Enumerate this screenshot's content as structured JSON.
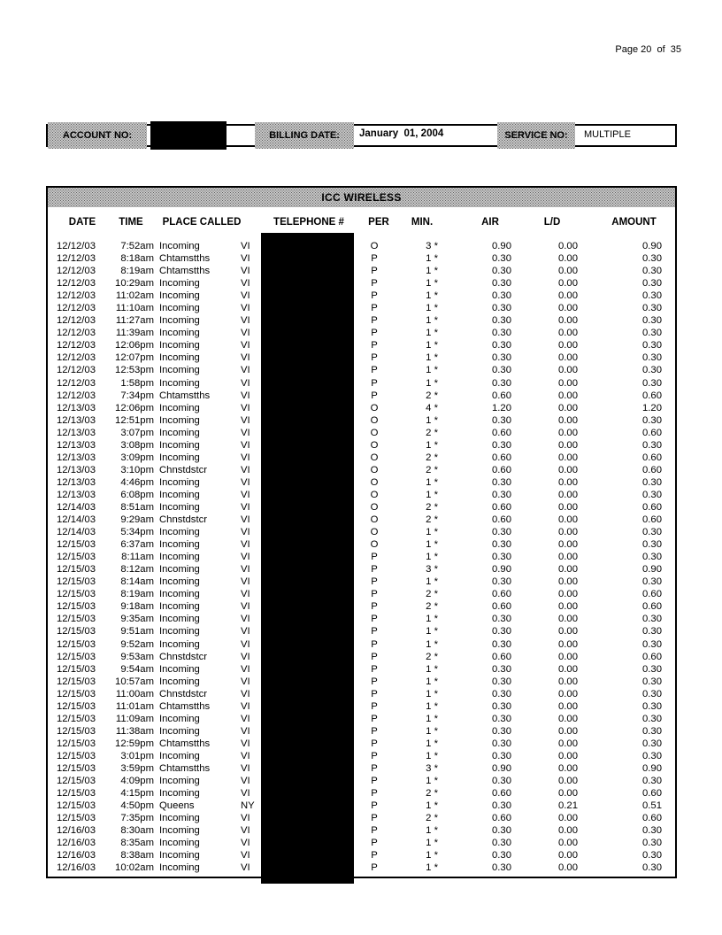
{
  "page": {
    "page_label": "Page 20  of  35"
  },
  "account_bar": {
    "account_label": "ACCOUNT NO:",
    "billing_label": "BILLING DATE:",
    "billing_value": "January  01, 2004",
    "service_label": "SERVICE NO:",
    "service_value": "MULTIPLE"
  },
  "table": {
    "title": "ICC WIRELESS",
    "columns": [
      "DATE",
      "TIME",
      "PLACE CALLED",
      "TELEPHONE #",
      "PER",
      "MIN.",
      "AIR",
      "L/D",
      "AMOUNT"
    ],
    "min_marker": "*",
    "rows": [
      [
        "12/12/03",
        "7:52am",
        "Incoming",
        "VI",
        "O",
        "3",
        "0.90",
        "0.00",
        "0.90"
      ],
      [
        "12/12/03",
        "8:18am",
        "Chtamstths",
        "VI",
        "P",
        "1",
        "0.30",
        "0.00",
        "0.30"
      ],
      [
        "12/12/03",
        "8:19am",
        "Chtamstths",
        "VI",
        "P",
        "1",
        "0.30",
        "0.00",
        "0.30"
      ],
      [
        "12/12/03",
        "10:29am",
        "Incoming",
        "VI",
        "P",
        "1",
        "0.30",
        "0.00",
        "0.30"
      ],
      [
        "12/12/03",
        "11:02am",
        "Incoming",
        "VI",
        "P",
        "1",
        "0.30",
        "0.00",
        "0.30"
      ],
      [
        "12/12/03",
        "11:10am",
        "Incoming",
        "VI",
        "P",
        "1",
        "0.30",
        "0.00",
        "0.30"
      ],
      [
        "12/12/03",
        "11:27am",
        "Incoming",
        "VI",
        "P",
        "1",
        "0.30",
        "0.00",
        "0.30"
      ],
      [
        "12/12/03",
        "11:39am",
        "Incoming",
        "VI",
        "P",
        "1",
        "0.30",
        "0.00",
        "0.30"
      ],
      [
        "12/12/03",
        "12:06pm",
        "Incoming",
        "VI",
        "P",
        "1",
        "0.30",
        "0.00",
        "0.30"
      ],
      [
        "12/12/03",
        "12:07pm",
        "Incoming",
        "VI",
        "P",
        "1",
        "0.30",
        "0.00",
        "0.30"
      ],
      [
        "12/12/03",
        "12:53pm",
        "Incoming",
        "VI",
        "P",
        "1",
        "0.30",
        "0.00",
        "0.30"
      ],
      [
        "12/12/03",
        "1:58pm",
        "Incoming",
        "VI",
        "P",
        "1",
        "0.30",
        "0.00",
        "0.30"
      ],
      [
        "12/12/03",
        "7:34pm",
        "Chtamstths",
        "VI",
        "P",
        "2",
        "0.60",
        "0.00",
        "0.60"
      ],
      [
        "12/13/03",
        "12:06pm",
        "Incoming",
        "VI",
        "O",
        "4",
        "1.20",
        "0.00",
        "1.20"
      ],
      [
        "12/13/03",
        "12:51pm",
        "Incoming",
        "VI",
        "O",
        "1",
        "0.30",
        "0.00",
        "0.30"
      ],
      [
        "12/13/03",
        "3:07pm",
        "Incoming",
        "VI",
        "O",
        "2",
        "0.60",
        "0.00",
        "0.60"
      ],
      [
        "12/13/03",
        "3:08pm",
        "Incoming",
        "VI",
        "O",
        "1",
        "0.30",
        "0.00",
        "0.30"
      ],
      [
        "12/13/03",
        "3:09pm",
        "Incoming",
        "VI",
        "O",
        "2",
        "0.60",
        "0.00",
        "0.60"
      ],
      [
        "12/13/03",
        "3:10pm",
        "Chnstdstcr",
        "VI",
        "O",
        "2",
        "0.60",
        "0.00",
        "0.60"
      ],
      [
        "12/13/03",
        "4:46pm",
        "Incoming",
        "VI",
        "O",
        "1",
        "0.30",
        "0.00",
        "0.30"
      ],
      [
        "12/13/03",
        "6:08pm",
        "Incoming",
        "VI",
        "O",
        "1",
        "0.30",
        "0.00",
        "0.30"
      ],
      [
        "12/14/03",
        "8:51am",
        "Incoming",
        "VI",
        "O",
        "2",
        "0.60",
        "0.00",
        "0.60"
      ],
      [
        "12/14/03",
        "9:29am",
        "Chnstdstcr",
        "VI",
        "O",
        "2",
        "0.60",
        "0.00",
        "0.60"
      ],
      [
        "12/14/03",
        "5:34pm",
        "Incoming",
        "VI",
        "O",
        "1",
        "0.30",
        "0.00",
        "0.30"
      ],
      [
        "12/15/03",
        "6:37am",
        "Incoming",
        "VI",
        "O",
        "1",
        "0.30",
        "0.00",
        "0.30"
      ],
      [
        "12/15/03",
        "8:11am",
        "Incoming",
        "VI",
        "P",
        "1",
        "0.30",
        "0.00",
        "0.30"
      ],
      [
        "12/15/03",
        "8:12am",
        "Incoming",
        "VI",
        "P",
        "3",
        "0.90",
        "0.00",
        "0.90"
      ],
      [
        "12/15/03",
        "8:14am",
        "Incoming",
        "VI",
        "P",
        "1",
        "0.30",
        "0.00",
        "0.30"
      ],
      [
        "12/15/03",
        "8:19am",
        "Incoming",
        "VI",
        "P",
        "2",
        "0.60",
        "0.00",
        "0.60"
      ],
      [
        "12/15/03",
        "9:18am",
        "Incoming",
        "VI",
        "P",
        "2",
        "0.60",
        "0.00",
        "0.60"
      ],
      [
        "12/15/03",
        "9:35am",
        "Incoming",
        "VI",
        "P",
        "1",
        "0.30",
        "0.00",
        "0.30"
      ],
      [
        "12/15/03",
        "9:51am",
        "Incoming",
        "VI",
        "P",
        "1",
        "0.30",
        "0.00",
        "0.30"
      ],
      [
        "12/15/03",
        "9:52am",
        "Incoming",
        "VI",
        "P",
        "1",
        "0.30",
        "0.00",
        "0.30"
      ],
      [
        "12/15/03",
        "9:53am",
        "Chnstdstcr",
        "VI",
        "P",
        "2",
        "0.60",
        "0.00",
        "0.60"
      ],
      [
        "12/15/03",
        "9:54am",
        "Incoming",
        "VI",
        "P",
        "1",
        "0.30",
        "0.00",
        "0.30"
      ],
      [
        "12/15/03",
        "10:57am",
        "Incoming",
        "VI",
        "P",
        "1",
        "0.30",
        "0.00",
        "0.30"
      ],
      [
        "12/15/03",
        "11:00am",
        "Chnstdstcr",
        "VI",
        "P",
        "1",
        "0.30",
        "0.00",
        "0.30"
      ],
      [
        "12/15/03",
        "11:01am",
        "Chtamstths",
        "VI",
        "P",
        "1",
        "0.30",
        "0.00",
        "0.30"
      ],
      [
        "12/15/03",
        "11:09am",
        "Incoming",
        "VI",
        "P",
        "1",
        "0.30",
        "0.00",
        "0.30"
      ],
      [
        "12/15/03",
        "11:38am",
        "Incoming",
        "VI",
        "P",
        "1",
        "0.30",
        "0.00",
        "0.30"
      ],
      [
        "12/15/03",
        "12:59pm",
        "Chtamstths",
        "VI",
        "P",
        "1",
        "0.30",
        "0.00",
        "0.30"
      ],
      [
        "12/15/03",
        "3:01pm",
        "Incoming",
        "VI",
        "P",
        "1",
        "0.30",
        "0.00",
        "0.30"
      ],
      [
        "12/15/03",
        "3:59pm",
        "Chtamstths",
        "VI",
        "P",
        "3",
        "0.90",
        "0.00",
        "0.90"
      ],
      [
        "12/15/03",
        "4:09pm",
        "Incoming",
        "VI",
        "P",
        "1",
        "0.30",
        "0.00",
        "0.30"
      ],
      [
        "12/15/03",
        "4:15pm",
        "Incoming",
        "VI",
        "P",
        "2",
        "0.60",
        "0.00",
        "0.60"
      ],
      [
        "12/15/03",
        "4:50pm",
        "Queens",
        "NY",
        "P",
        "1",
        "0.30",
        "0.21",
        "0.51"
      ],
      [
        "12/15/03",
        "7:35pm",
        "Incoming",
        "VI",
        "P",
        "2",
        "0.60",
        "0.00",
        "0.60"
      ],
      [
        "12/16/03",
        "8:30am",
        "Incoming",
        "VI",
        "P",
        "1",
        "0.30",
        "0.00",
        "0.30"
      ],
      [
        "12/16/03",
        "8:35am",
        "Incoming",
        "VI",
        "P",
        "1",
        "0.30",
        "0.00",
        "0.30"
      ],
      [
        "12/16/03",
        "8:38am",
        "Incoming",
        "VI",
        "P",
        "1",
        "0.30",
        "0.00",
        "0.30"
      ],
      [
        "12/16/03",
        "10:02am",
        "Incoming",
        "VI",
        "P",
        "1",
        "0.30",
        "0.00",
        "0.30"
      ]
    ]
  }
}
